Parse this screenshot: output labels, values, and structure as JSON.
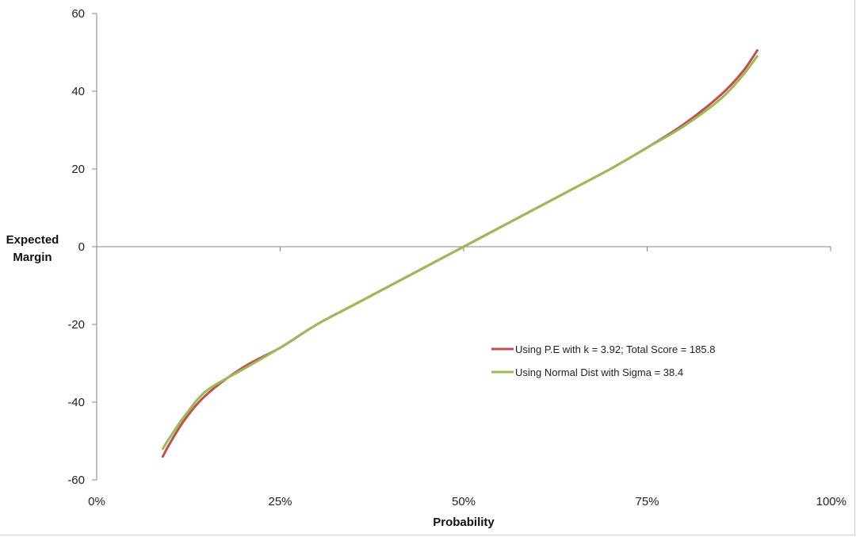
{
  "chart_data": {
    "type": "line",
    "title": "",
    "xlabel": "Probability",
    "ylabel_lines": [
      "Expected",
      "Margin"
    ],
    "x_ticks": [
      {
        "value": 0,
        "label": "0%"
      },
      {
        "value": 0.25,
        "label": "25%"
      },
      {
        "value": 0.5,
        "label": "50%"
      },
      {
        "value": 0.75,
        "label": "75%"
      },
      {
        "value": 1.0,
        "label": "100%"
      }
    ],
    "y_ticks": [
      {
        "value": 60,
        "label": "60"
      },
      {
        "value": 40,
        "label": "40"
      },
      {
        "value": 20,
        "label": "20"
      },
      {
        "value": 0,
        "label": "0"
      },
      {
        "value": -20,
        "label": "-20"
      },
      {
        "value": -40,
        "label": "-40"
      },
      {
        "value": -60,
        "label": "-60"
      }
    ],
    "xlim": [
      0,
      1
    ],
    "ylim": [
      -60,
      60
    ],
    "grid": false,
    "legend_position": "right-center",
    "series": [
      {
        "name": "Using P.E with k = 3.92; Total Score = 185.8",
        "color": "#c0504d",
        "x": [
          0.09,
          0.1,
          0.12,
          0.15,
          0.2,
          0.25,
          0.3,
          0.35,
          0.4,
          0.45,
          0.5,
          0.55,
          0.6,
          0.65,
          0.7,
          0.75,
          0.8,
          0.85,
          0.88,
          0.9
        ],
        "y": [
          -54,
          -50.5,
          -44.5,
          -38,
          -31,
          -26,
          -20,
          -15,
          -10,
          -5,
          0,
          5,
          10,
          15,
          20,
          25.5,
          31.5,
          39,
          45,
          50.5
        ]
      },
      {
        "name": "Using Normal Dist with Sigma = 38.4",
        "color": "#9bbb59",
        "x": [
          0.09,
          0.1,
          0.12,
          0.15,
          0.2,
          0.25,
          0.3,
          0.35,
          0.4,
          0.45,
          0.5,
          0.55,
          0.6,
          0.65,
          0.7,
          0.75,
          0.8,
          0.85,
          0.88,
          0.9
        ],
        "y": [
          -52,
          -49,
          -43.5,
          -37,
          -31.5,
          -26,
          -20,
          -15,
          -10,
          -5,
          0,
          5,
          10,
          15,
          20,
          25.5,
          31,
          38,
          44,
          49
        ]
      }
    ]
  }
}
